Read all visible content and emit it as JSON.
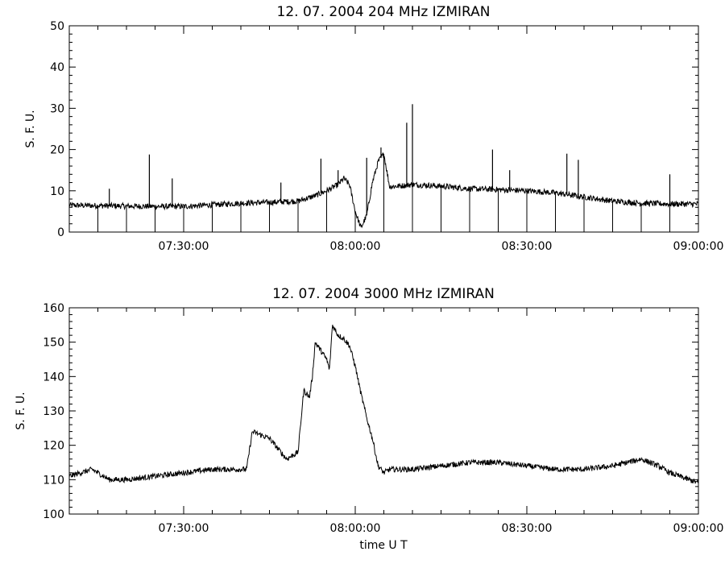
{
  "chart_data": [
    {
      "type": "line",
      "title": "12.  07.  2004    204 MHz    IZMIRAN",
      "ylabel": "S. F. U.",
      "xlabel": "",
      "xlim": [
        "07:10:00",
        "09:00:00"
      ],
      "ylim": [
        0,
        50
      ],
      "yticks": [
        0,
        10,
        20,
        30,
        40,
        50
      ],
      "xtick_labels": [
        "07:30:00",
        "08:00:00",
        "08:30:00",
        "09:00:00"
      ],
      "xtick_values": [
        "07:30:00",
        "08:00:00",
        "08:30:00",
        "09:00:00"
      ],
      "grid": false,
      "series": [
        {
          "x": [
            "07:10:00",
            "07:15:00",
            "07:20:00",
            "07:25:00",
            "07:30:00",
            "07:35:00",
            "07:40:00",
            "07:45:00",
            "07:50:00",
            "07:53:00",
            "07:55:00",
            "07:57:00",
            "07:58:00",
            "07:59:00",
            "08:00:00",
            "08:01:00",
            "08:02:00",
            "08:03:00",
            "08:04:00",
            "08:05:00",
            "08:06:00",
            "08:08:00",
            "08:10:00",
            "08:13:00",
            "08:16:00",
            "08:20:00",
            "08:25:00",
            "08:30:00",
            "08:35:00",
            "08:40:00",
            "08:45:00",
            "08:50:00",
            "08:55:00",
            "09:00:00"
          ],
          "values": [
            6.5,
            6.4,
            6.3,
            6.2,
            6.2,
            6.6,
            7.0,
            7.2,
            7.5,
            8.8,
            10.0,
            11.5,
            13.0,
            11.5,
            5.0,
            1.0,
            4.0,
            12.0,
            17.0,
            19.0,
            11.0,
            11.2,
            11.5,
            11.3,
            11.0,
            10.5,
            10.3,
            10.0,
            9.5,
            8.5,
            7.5,
            7.0,
            6.8,
            6.8
          ]
        }
      ],
      "spikes": [
        {
          "x": "07:17:00",
          "y": 10.5
        },
        {
          "x": "07:24:00",
          "y": 18.8
        },
        {
          "x": "07:28:00",
          "y": 13.0
        },
        {
          "x": "07:47:00",
          "y": 12.0
        },
        {
          "x": "07:54:00",
          "y": 17.8
        },
        {
          "x": "07:57:00",
          "y": 15.0
        },
        {
          "x": "08:02:00",
          "y": 18.0
        },
        {
          "x": "08:04:30",
          "y": 20.5
        },
        {
          "x": "08:09:00",
          "y": 26.5
        },
        {
          "x": "08:10:00",
          "y": 31.0
        },
        {
          "x": "08:24:00",
          "y": 20.0
        },
        {
          "x": "08:27:00",
          "y": 15.0
        },
        {
          "x": "08:37:00",
          "y": 19.0
        },
        {
          "x": "08:39:00",
          "y": 17.5
        },
        {
          "x": "08:55:00",
          "y": 14.0
        }
      ],
      "dips": [
        "07:15:00",
        "07:20:00",
        "07:25:00",
        "07:30:00",
        "07:35:00",
        "07:40:00",
        "07:45:00",
        "07:50:00",
        "07:55:00",
        "08:00:00",
        "08:05:00",
        "08:10:00",
        "08:15:00",
        "08:20:00",
        "08:25:00",
        "08:30:00",
        "08:35:00",
        "08:40:00",
        "08:45:00",
        "08:50:00",
        "08:55:00"
      ]
    },
    {
      "type": "line",
      "title": "12.  07.  2004    3000 MHz    IZMIRAN",
      "ylabel": "S. F. U.",
      "xlabel": "time   U T",
      "xlim": [
        "07:10:00",
        "09:00:00"
      ],
      "ylim": [
        100,
        160
      ],
      "yticks": [
        100,
        110,
        120,
        130,
        140,
        150,
        160
      ],
      "xtick_labels": [
        "07:30:00",
        "08:00:00",
        "08:30:00",
        "09:00:00"
      ],
      "xtick_values": [
        "07:30:00",
        "08:00:00",
        "08:30:00",
        "09:00:00"
      ],
      "grid": false,
      "series": [
        {
          "x": [
            "07:10:00",
            "07:12:00",
            "07:14:00",
            "07:17:00",
            "07:20:00",
            "07:25:00",
            "07:30:00",
            "07:35:00",
            "07:40:00",
            "07:41:00",
            "07:42:00",
            "07:45:00",
            "07:47:00",
            "07:48:00",
            "07:49:00",
            "07:50:00",
            "07:51:00",
            "07:52:00",
            "07:52:30",
            "07:53:00",
            "07:55:00",
            "07:55:30",
            "07:56:00",
            "07:57:00",
            "07:58:00",
            "07:59:00",
            "08:00:00",
            "08:01:00",
            "08:02:00",
            "08:03:00",
            "08:04:00",
            "08:05:00",
            "08:06:00",
            "08:10:00",
            "08:15:00",
            "08:20:00",
            "08:25:00",
            "08:30:00",
            "08:35:00",
            "08:40:00",
            "08:45:00",
            "08:50:00",
            "08:53:00",
            "08:55:00",
            "09:00:00"
          ],
          "values": [
            111,
            112,
            113,
            110,
            110,
            111,
            112,
            113,
            113,
            113,
            124,
            122,
            118,
            116,
            117,
            118,
            136,
            134,
            140,
            150,
            145,
            142,
            155,
            152,
            151,
            149,
            143,
            135,
            128,
            122,
            114,
            112,
            113,
            113,
            114,
            115,
            115,
            114,
            113,
            113,
            114,
            116,
            114,
            112,
            109
          ]
        }
      ]
    }
  ]
}
